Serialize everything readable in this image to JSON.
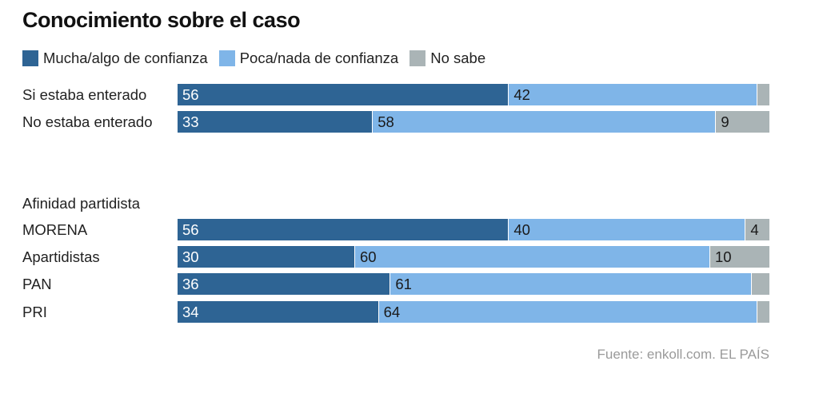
{
  "title": "Conocimiento sobre el caso",
  "source": "Fuente: enkoll.com. EL PAÍS",
  "colors": {
    "mucha": "#2e6494",
    "poca": "#7fb5e8",
    "nosabe": "#aab4b6",
    "label_dark_bg": "#ffffff",
    "label_light_bg": "#1a1a1a"
  },
  "chart_data": {
    "type": "bar",
    "orientation": "horizontal",
    "stacked": true,
    "normalized": "percent",
    "title": "Conocimiento sobre el caso",
    "legend_position": "top-left",
    "series": [
      {
        "name": "Mucha/algo de confianza",
        "key": "mucha"
      },
      {
        "name": "Poca/nada de confianza",
        "key": "poca"
      },
      {
        "name": "No sabe",
        "key": "nosabe"
      }
    ],
    "groups": [
      {
        "label": "",
        "rows": [
          {
            "label": "Si estaba enterado",
            "values": [
              56,
              42,
              2
            ],
            "labels": [
              "56",
              "42",
              ""
            ]
          },
          {
            "label": "No estaba enterado",
            "values": [
              33,
              58,
              9
            ],
            "labels": [
              "33",
              "58",
              "9"
            ]
          }
        ]
      },
      {
        "label": "Afinidad partidista",
        "rows": [
          {
            "label": "MORENA",
            "values": [
              56,
              40,
              4
            ],
            "labels": [
              "56",
              "40",
              "4"
            ]
          },
          {
            "label": "Apartidistas",
            "values": [
              30,
              60,
              10
            ],
            "labels": [
              "30",
              "60",
              "10"
            ]
          },
          {
            "label": "PAN",
            "values": [
              36,
              61,
              3
            ],
            "labels": [
              "36",
              "61",
              ""
            ]
          },
          {
            "label": "PRI",
            "values": [
              34,
              64,
              2
            ],
            "labels": [
              "34",
              "64",
              ""
            ]
          }
        ]
      }
    ]
  }
}
